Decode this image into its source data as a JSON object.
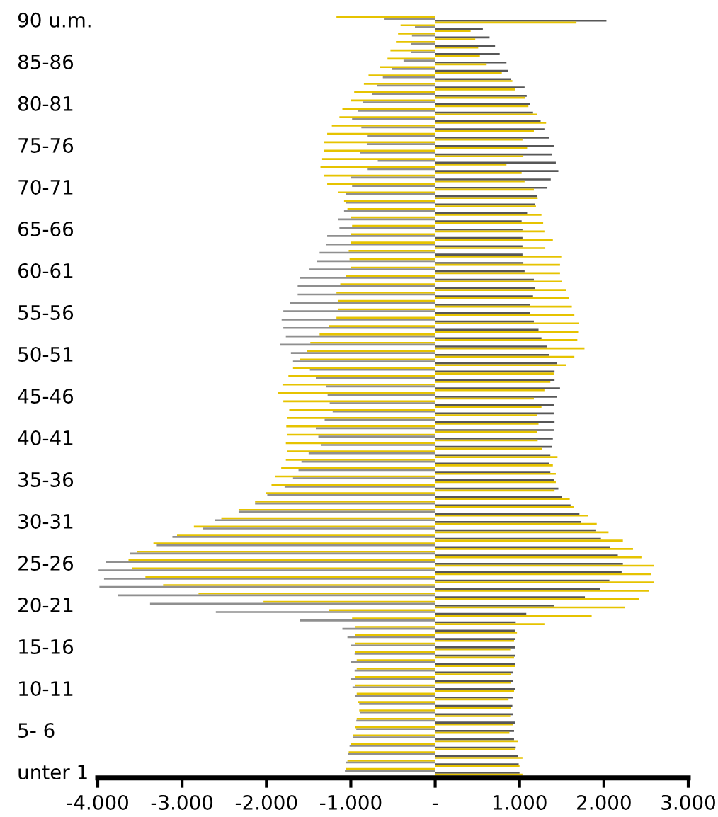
{
  "chart_data": {
    "type": "bar",
    "orientation": "horizontal",
    "categories": [
      "90 u.m.",
      null,
      null,
      null,
      null,
      "85-86",
      null,
      null,
      null,
      null,
      "80-81",
      null,
      null,
      null,
      null,
      "75-76",
      null,
      null,
      null,
      null,
      "70-71",
      null,
      null,
      null,
      null,
      "65-66",
      null,
      null,
      null,
      null,
      "60-61",
      null,
      null,
      null,
      null,
      "55-56",
      null,
      null,
      null,
      null,
      "50-51",
      null,
      null,
      null,
      null,
      "45-46",
      null,
      null,
      null,
      null,
      "40-41",
      null,
      null,
      null,
      null,
      "35-36",
      null,
      null,
      null,
      null,
      "30-31",
      null,
      null,
      null,
      null,
      "25-26",
      null,
      null,
      null,
      null,
      "20-21",
      null,
      null,
      null,
      null,
      "15-16",
      null,
      null,
      null,
      null,
      "10-11",
      null,
      null,
      null,
      null,
      "5- 6",
      null,
      null,
      null,
      null,
      "unter 1"
    ],
    "series": [
      {
        "color": "#e6c300",
        "values": [
          -1170,
          -410,
          -440,
          -465,
          -530,
          -565,
          -655,
          -790,
          -845,
          -960,
          -1000,
          -1100,
          -1135,
          -1225,
          -1280,
          -1315,
          -1315,
          -1340,
          -1360,
          -1315,
          -1280,
          -1150,
          -1080,
          -1040,
          -1000,
          -985,
          -1000,
          -1000,
          -1025,
          -1015,
          -1000,
          -1060,
          -1125,
          -1170,
          -1155,
          -1155,
          -1170,
          -1260,
          -1370,
          -1480,
          -1520,
          -1605,
          -1685,
          -1740,
          -1810,
          -1865,
          -1800,
          -1730,
          -1755,
          -1765,
          -1755,
          -1770,
          -1755,
          -1770,
          -1825,
          -1900,
          -1940,
          -2010,
          -2135,
          -2330,
          -2535,
          -2860,
          -3060,
          -3340,
          -3535,
          -3635,
          -3590,
          -3435,
          -3225,
          -2805,
          -2035,
          -1260,
          -985,
          -945,
          -945,
          -945,
          -945,
          -930,
          -930,
          -945,
          -945,
          -930,
          -915,
          -900,
          -930,
          -945,
          -970,
          -1000,
          -1025,
          -1040,
          -1060
        ]
      },
      {
        "color": "#8f8f8f",
        "values": [
          -600,
          -240,
          -275,
          -290,
          -290,
          -375,
          -510,
          -620,
          -690,
          -745,
          -855,
          -915,
          -985,
          -875,
          -800,
          -810,
          -890,
          -680,
          -800,
          -1000,
          -985,
          -1060,
          -1060,
          -1080,
          -1150,
          -1135,
          -1280,
          -1295,
          -1370,
          -1405,
          -1490,
          -1600,
          -1630,
          -1630,
          -1725,
          -1800,
          -1820,
          -1800,
          -1770,
          -1835,
          -1710,
          -1685,
          -1485,
          -1415,
          -1295,
          -1275,
          -1250,
          -1215,
          -1310,
          -1415,
          -1385,
          -1350,
          -1500,
          -1585,
          -1620,
          -1685,
          -1785,
          -1990,
          -2135,
          -2330,
          -2610,
          -2750,
          -3115,
          -3300,
          -3620,
          -3900,
          -3990,
          -3925,
          -3980,
          -3760,
          -3380,
          -2600,
          -1600,
          -1100,
          -1040,
          -1000,
          -955,
          -1000,
          -955,
          -1000,
          -980,
          -945,
          -900,
          -890,
          -935,
          -935,
          -970,
          -1015,
          -1030,
          -1060,
          -1070
        ]
      },
      {
        "color": "#575757",
        "values": [
          2030,
          565,
          645,
          710,
          765,
          845,
          860,
          900,
          1060,
          1085,
          1125,
          1160,
          1250,
          1295,
          1350,
          1405,
          1380,
          1430,
          1460,
          1370,
          1330,
          1205,
          1180,
          1090,
          1025,
          1035,
          1035,
          1035,
          1035,
          1045,
          1060,
          1170,
          1180,
          1160,
          1125,
          1125,
          1170,
          1225,
          1260,
          1325,
          1350,
          1440,
          1415,
          1415,
          1480,
          1440,
          1405,
          1405,
          1415,
          1405,
          1395,
          1385,
          1365,
          1350,
          1365,
          1405,
          1460,
          1505,
          1605,
          1710,
          1730,
          1900,
          1965,
          2075,
          2165,
          2225,
          2210,
          2065,
          1955,
          1775,
          1405,
          1080,
          955,
          945,
          945,
          945,
          945,
          945,
          925,
          925,
          945,
          925,
          915,
          925,
          945,
          935,
          935,
          955,
          980,
          990,
          1000
        ]
      },
      {
        "color": "#e6c300",
        "values": [
          1675,
          420,
          475,
          510,
          530,
          610,
          790,
          915,
          945,
          1070,
          1105,
          1205,
          1315,
          1170,
          1035,
          1090,
          1045,
          845,
          1025,
          1060,
          1170,
          1215,
          1195,
          1260,
          1280,
          1295,
          1395,
          1305,
          1495,
          1480,
          1480,
          1505,
          1550,
          1585,
          1620,
          1650,
          1705,
          1695,
          1685,
          1770,
          1650,
          1550,
          1405,
          1365,
          1295,
          1170,
          1260,
          1205,
          1225,
          1205,
          1215,
          1270,
          1450,
          1395,
          1430,
          1430,
          1415,
          1595,
          1640,
          1815,
          1915,
          2055,
          2225,
          2345,
          2445,
          2595,
          2560,
          2595,
          2535,
          2415,
          2245,
          1855,
          1295,
          970,
          935,
          890,
          935,
          945,
          900,
          900,
          935,
          870,
          900,
          890,
          925,
          880,
          980,
          945,
          1035,
          1000,
          1035
        ]
      }
    ],
    "xlim": [
      -4000,
      3000
    ],
    "xticks": [
      {
        "value": -4000,
        "label": "-4.000"
      },
      {
        "value": -3000,
        "label": "-3.000"
      },
      {
        "value": -2000,
        "label": "-2.000"
      },
      {
        "value": -1000,
        "label": "-1.000"
      },
      {
        "value": 0,
        "label": "-"
      },
      {
        "value": 1000,
        "label": "1.000"
      },
      {
        "value": 2000,
        "label": "2.000"
      },
      {
        "value": 3000,
        "label": "3.000"
      }
    ],
    "grid": false
  }
}
